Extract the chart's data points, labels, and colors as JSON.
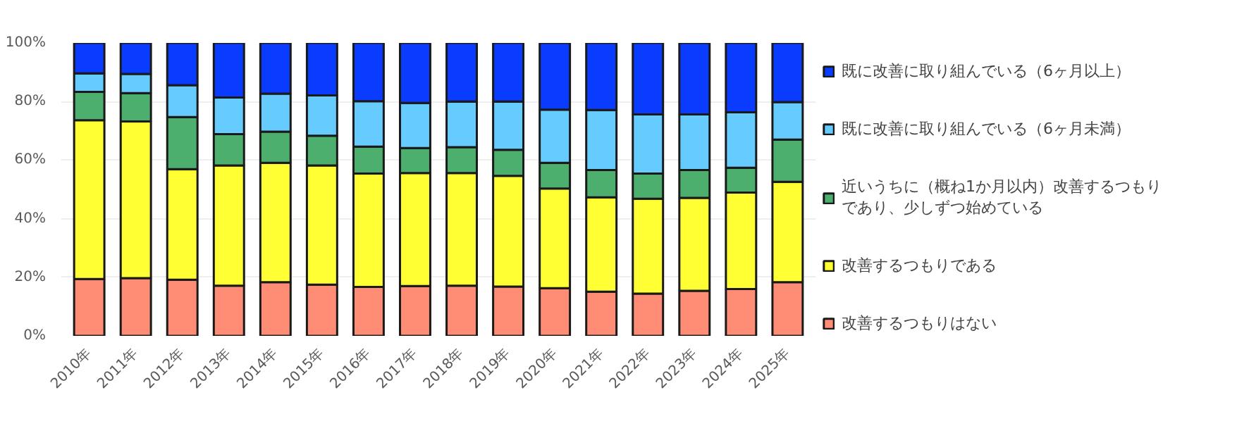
{
  "chart_data": {
    "type": "bar",
    "stacked": true,
    "categories": [
      "2010年",
      "2011年",
      "2012年",
      "2013年",
      "2014年",
      "2015年",
      "2016年",
      "2017年",
      "2018年",
      "2019年",
      "2020年",
      "2021年",
      "2022年",
      "2023年",
      "2024年",
      "2025年"
    ],
    "series": [
      {
        "name": "改善するつもりはない",
        "color": "#ff8c74",
        "values": [
          19.4,
          19.7,
          19.2,
          17.1,
          18.3,
          17.5,
          16.7,
          17.0,
          17.1,
          16.8,
          16.3,
          15.1,
          14.4,
          15.4,
          16.0,
          18.3
        ]
      },
      {
        "name": "改善するつもりである",
        "color": "#ffff33",
        "values": [
          54.2,
          53.5,
          37.7,
          41.1,
          40.8,
          40.7,
          38.7,
          38.6,
          38.5,
          37.8,
          34.0,
          32.2,
          32.4,
          31.7,
          32.9,
          34.3
        ]
      },
      {
        "name": "近いうちに（概ね1か月以内）改善するつもりであり、少しずつ始めている",
        "color": "#4caf6e",
        "values": [
          9.7,
          9.7,
          17.8,
          10.7,
          10.6,
          10.1,
          9.2,
          8.5,
          8.8,
          8.9,
          8.8,
          9.3,
          8.6,
          9.5,
          8.5,
          14.4
        ]
      },
      {
        "name": "既に改善に取り組んでいる（6ヶ月未満）",
        "color": "#66ccff",
        "values": [
          6.3,
          6.5,
          10.9,
          12.5,
          13.0,
          13.8,
          15.5,
          15.4,
          15.6,
          16.5,
          18.1,
          20.5,
          20.2,
          19.0,
          18.9,
          12.8
        ]
      },
      {
        "name": "既に改善に取り組んでいる（6ヶ月以上）",
        "color": "#0a3cff",
        "values": [
          10.4,
          10.6,
          14.4,
          18.6,
          17.3,
          17.9,
          19.9,
          20.5,
          20.0,
          20.0,
          22.8,
          22.9,
          24.4,
          24.4,
          23.7,
          20.2
        ]
      }
    ],
    "ylim": [
      0,
      100
    ],
    "yticks": [
      {
        "value": 0,
        "label": "0%"
      },
      {
        "value": 20,
        "label": "20%"
      },
      {
        "value": 40,
        "label": "40%"
      },
      {
        "value": 60,
        "label": "60%"
      },
      {
        "value": 80,
        "label": "80%"
      },
      {
        "value": 100,
        "label": "100%"
      }
    ],
    "grid": "y",
    "legend": "right"
  }
}
